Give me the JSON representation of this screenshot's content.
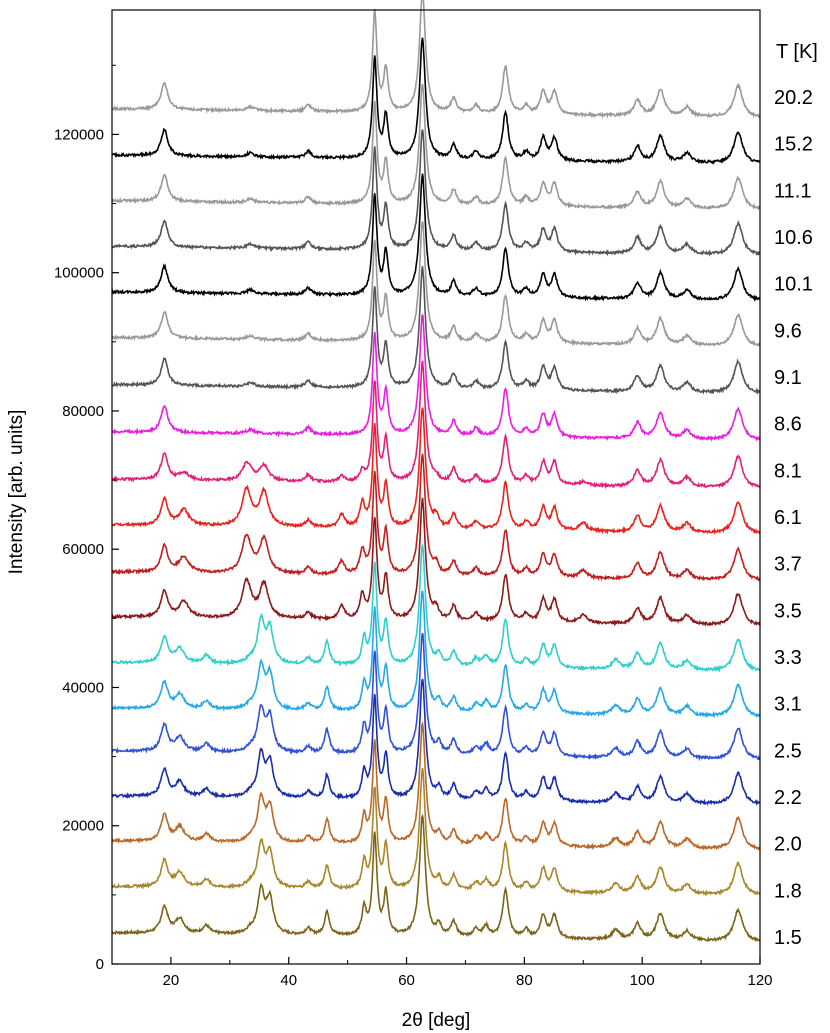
{
  "chart_data": {
    "type": "line",
    "xlabel": "2θ [deg]",
    "ylabel": "Intensity [arb. units]",
    "legend_title": "T [K]",
    "xlim": [
      10,
      120
    ],
    "ylim": [
      0,
      138000
    ],
    "x_ticks": [
      20,
      40,
      60,
      80,
      100,
      120
    ],
    "y_ticks": [
      0,
      20000,
      40000,
      60000,
      80000,
      100000,
      120000
    ],
    "grid": false,
    "legend_placement": "right",
    "peaks_common": [
      {
        "x": 18.9,
        "h": 1.0,
        "w": 0.7
      },
      {
        "x": 33.5,
        "h": 0.15,
        "w": 0.8
      },
      {
        "x": 43.3,
        "h": 0.25,
        "w": 0.6
      },
      {
        "x": 54.6,
        "h": 3.8,
        "w": 0.45
      },
      {
        "x": 56.5,
        "h": 1.6,
        "w": 0.45
      },
      {
        "x": 62.7,
        "h": 4.6,
        "w": 0.6
      },
      {
        "x": 68.0,
        "h": 0.55,
        "w": 0.55
      },
      {
        "x": 71.8,
        "h": 0.3,
        "w": 0.6
      },
      {
        "x": 76.8,
        "h": 1.8,
        "w": 0.6
      },
      {
        "x": 80.3,
        "h": 0.3,
        "w": 0.6
      },
      {
        "x": 83.2,
        "h": 0.85,
        "w": 0.6
      },
      {
        "x": 85.1,
        "h": 0.85,
        "w": 0.6
      },
      {
        "x": 99.2,
        "h": 0.6,
        "w": 0.7
      },
      {
        "x": 103.1,
        "h": 1.0,
        "w": 0.8
      },
      {
        "x": 107.6,
        "h": 0.35,
        "w": 0.8
      },
      {
        "x": 116.3,
        "h": 1.2,
        "w": 0.9
      }
    ],
    "peaks_lowT": [
      {
        "x": 21.5,
        "h": 0.55,
        "w": 0.9
      },
      {
        "x": 26.0,
        "h": 0.3,
        "w": 0.7
      },
      {
        "x": 35.3,
        "h": 1.6,
        "w": 0.7
      },
      {
        "x": 36.8,
        "h": 1.3,
        "w": 0.7
      },
      {
        "x": 46.5,
        "h": 0.9,
        "w": 0.5
      },
      {
        "x": 52.8,
        "h": 1.0,
        "w": 0.45
      },
      {
        "x": 65.5,
        "h": 0.4,
        "w": 0.5
      },
      {
        "x": 73.5,
        "h": 0.4,
        "w": 0.6
      },
      {
        "x": 95.5,
        "h": 0.35,
        "w": 0.8
      }
    ],
    "peaks_midT": [
      {
        "x": 22.2,
        "h": 0.6,
        "w": 1.0
      },
      {
        "x": 32.8,
        "h": 1.3,
        "w": 0.9
      },
      {
        "x": 35.8,
        "h": 1.3,
        "w": 0.9
      },
      {
        "x": 49.0,
        "h": 0.5,
        "w": 0.6
      },
      {
        "x": 52.5,
        "h": 0.9,
        "w": 0.5
      },
      {
        "x": 65.0,
        "h": 0.4,
        "w": 0.5
      },
      {
        "x": 90.0,
        "h": 0.3,
        "w": 0.8
      }
    ],
    "series": [
      {
        "name": "1.5",
        "baseline": 4500,
        "color": "#7a6418",
        "phase": "low"
      },
      {
        "name": "1.8",
        "baseline": 11200,
        "color": "#a8862b",
        "phase": "low"
      },
      {
        "name": "2.0",
        "baseline": 17800,
        "color": "#b8692a",
        "phase": "low"
      },
      {
        "name": "2.2",
        "baseline": 24300,
        "color": "#1a2ea8",
        "phase": "low"
      },
      {
        "name": "2.5",
        "baseline": 30800,
        "color": "#2f52d6",
        "phase": "low"
      },
      {
        "name": "3.1",
        "baseline": 37000,
        "color": "#24a8e6",
        "phase": "low"
      },
      {
        "name": "3.3",
        "baseline": 43600,
        "color": "#2ecfcc",
        "phase": "low"
      },
      {
        "name": "3.5",
        "baseline": 50200,
        "color": "#8b1a1a",
        "phase": "mid"
      },
      {
        "name": "3.7",
        "baseline": 56700,
        "color": "#c01f1f",
        "phase": "mid"
      },
      {
        "name": "6.1",
        "baseline": 63500,
        "color": "#e8231e",
        "phase": "mid"
      },
      {
        "name": "8.1",
        "baseline": 70100,
        "color": "#e0207a",
        "phase": "mid_weak"
      },
      {
        "name": "8.6",
        "baseline": 77000,
        "color": "#e81ee0",
        "phase": "high"
      },
      {
        "name": "9.1",
        "baseline": 83800,
        "color": "#555555",
        "phase": "high"
      },
      {
        "name": "9.6",
        "baseline": 90600,
        "color": "#999999",
        "phase": "high"
      },
      {
        "name": "10.1",
        "baseline": 97200,
        "color": "#000000",
        "phase": "high"
      },
      {
        "name": "10.6",
        "baseline": 103800,
        "color": "#555555",
        "phase": "high"
      },
      {
        "name": "11.1",
        "baseline": 110400,
        "color": "#999999",
        "phase": "high"
      },
      {
        "name": "15.2",
        "baseline": 117000,
        "color": "#000000",
        "phase": "high"
      },
      {
        "name": "20.2",
        "baseline": 123700,
        "color": "#999999",
        "phase": "high"
      }
    ]
  }
}
